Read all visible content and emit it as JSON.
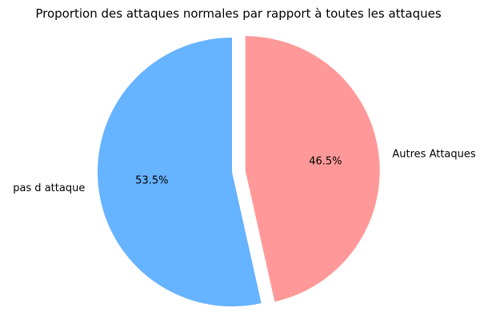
{
  "chart_data": {
    "type": "pie",
    "title": "Proportion des attaques normales par rapport à toutes les attaques",
    "slices": [
      {
        "label": "pas d attaque",
        "value": 53.5,
        "pct_label": "53.5%",
        "color": "#66b3ff",
        "explode": false
      },
      {
        "label": "Autres Attaques",
        "value": 46.5,
        "pct_label": "46.5%",
        "color": "#ff9999",
        "explode": true
      }
    ],
    "start_angle_deg": 90,
    "direction": "counterclockwise"
  }
}
